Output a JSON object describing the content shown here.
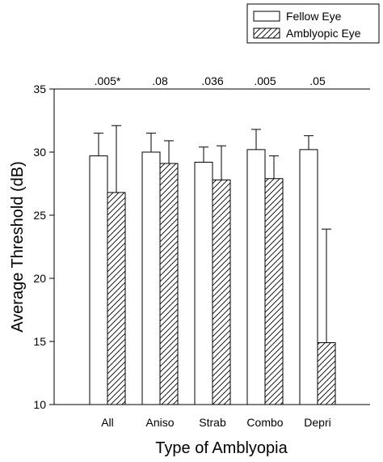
{
  "chart_data": {
    "type": "bar",
    "xlabel": "Type of Amblyopia",
    "ylabel": "Average Threshold (dB)",
    "ylim": [
      10,
      35
    ],
    "yticks": [
      10,
      15,
      20,
      25,
      30,
      35
    ],
    "categories": [
      "All",
      "Aniso",
      "Strab",
      "Combo",
      "Depri"
    ],
    "p_values": [
      ".005*",
      ".08",
      ".036",
      ".005",
      ".05"
    ],
    "legend_position": "top-right",
    "grid": false,
    "series": [
      {
        "name": "Fellow Eye",
        "pattern": "open",
        "values": [
          29.7,
          30.0,
          29.2,
          30.2,
          30.2
        ],
        "error_upper": [
          31.5,
          31.5,
          30.4,
          31.8,
          31.3
        ]
      },
      {
        "name": "Amblyopic Eye",
        "pattern": "hatched",
        "values": [
          26.8,
          29.1,
          27.8,
          27.9,
          14.9
        ],
        "error_upper": [
          32.1,
          30.9,
          30.5,
          29.7,
          23.9
        ]
      }
    ]
  }
}
